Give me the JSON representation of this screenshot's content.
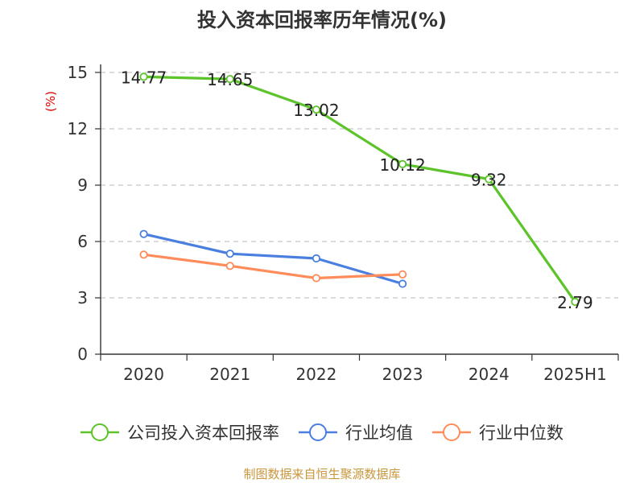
{
  "chart_data": {
    "type": "line",
    "title": "投入资本回报率历年情况(%)",
    "ylabel": "(%)",
    "categories": [
      "2020",
      "2021",
      "2022",
      "2023",
      "2024",
      "2025H1"
    ],
    "ylim": [
      0,
      15
    ],
    "yticks": [
      0,
      3,
      6,
      9,
      12,
      15
    ],
    "grid": true,
    "legend_position": "bottom",
    "series": [
      {
        "name": "公司投入资本回报率",
        "color": "#5cc42a",
        "values": [
          14.77,
          14.65,
          13.02,
          10.12,
          9.32,
          2.79
        ],
        "labels": [
          "14.77",
          "14.65",
          "13.02",
          "10.12",
          "9.32",
          "2.79"
        ],
        "show_labels": true
      },
      {
        "name": "行业均值",
        "color": "#4a7fe0",
        "values": [
          6.4,
          5.35,
          5.1,
          3.75,
          null,
          null
        ],
        "show_labels": false
      },
      {
        "name": "行业中位数",
        "color": "#ff8c5a",
        "values": [
          5.3,
          4.7,
          4.05,
          4.25,
          null,
          null
        ],
        "show_labels": false
      }
    ]
  },
  "footer": {
    "source": "制图数据来自恒生聚源数据库"
  }
}
